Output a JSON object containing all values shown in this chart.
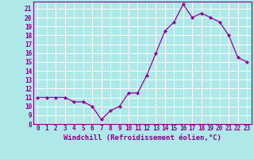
{
  "x": [
    0,
    1,
    2,
    3,
    4,
    5,
    6,
    7,
    8,
    9,
    10,
    11,
    12,
    13,
    14,
    15,
    16,
    17,
    18,
    19,
    20,
    21,
    22,
    23
  ],
  "y": [
    11,
    11,
    11,
    11,
    10.5,
    10.5,
    10,
    8.5,
    9.5,
    10,
    11.5,
    11.5,
    13.5,
    16,
    18.5,
    19.5,
    21.5,
    20,
    20.5,
    20,
    19.5,
    18,
    15.5,
    15
  ],
  "line_color": "#990099",
  "marker": "D",
  "marker_size": 2,
  "bg_color": "#aee8e8",
  "grid_color": "#c8e8e8",
  "xlabel": "Windchill (Refroidissement éolien,°C)",
  "ylim": [
    8,
    21.8
  ],
  "xlim": [
    -0.5,
    23.5
  ],
  "yticks": [
    8,
    9,
    10,
    11,
    12,
    13,
    14,
    15,
    16,
    17,
    18,
    19,
    20,
    21
  ],
  "xticks": [
    0,
    1,
    2,
    3,
    4,
    5,
    6,
    7,
    8,
    9,
    10,
    11,
    12,
    13,
    14,
    15,
    16,
    17,
    18,
    19,
    20,
    21,
    22,
    23
  ],
  "tick_color": "#880088",
  "tick_fontsize": 5.5,
  "xlabel_fontsize": 6.5
}
